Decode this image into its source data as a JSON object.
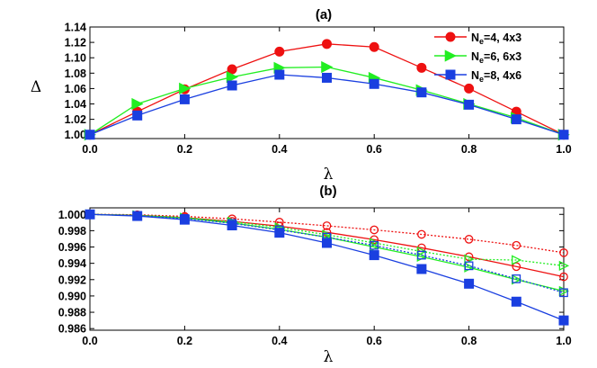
{
  "chart_data": [
    {
      "type": "line",
      "title": "(a)",
      "xlabel": "λ",
      "ylabel": "Δ",
      "xlim": [
        0.0,
        1.0
      ],
      "ylim": [
        0.995,
        1.14
      ],
      "xticks": [
        "0.0",
        "0.2",
        "0.4",
        "0.6",
        "0.8",
        "1.0"
      ],
      "yticks": [
        "1.00",
        "1.02",
        "1.04",
        "1.06",
        "1.08",
        "1.10",
        "1.12",
        "1.14"
      ],
      "x": [
        0.0,
        0.1,
        0.2,
        0.3,
        0.4,
        0.5,
        0.6,
        0.7,
        0.8,
        0.9,
        1.0
      ],
      "legend_position": "top-right",
      "series": [
        {
          "name": "N_e=4, 4x3",
          "name_main": "N",
          "name_sub": "e",
          "name_rest": "=4, 4x3",
          "color": "#ee1111",
          "marker": "circle",
          "values": [
            1.0,
            1.03,
            1.059,
            1.085,
            1.108,
            1.118,
            1.114,
            1.087,
            1.06,
            1.03,
            1.0
          ]
        },
        {
          "name": "N_e=6, 6x3",
          "name_main": "N",
          "name_sub": "e",
          "name_rest": "=6, 6x3",
          "color": "#22ee22",
          "marker": "triangle-right",
          "values": [
            1.0,
            1.04,
            1.06,
            1.075,
            1.087,
            1.088,
            1.074,
            1.058,
            1.04,
            1.022,
            1.0
          ]
        },
        {
          "name": "N_e=8, 4x6",
          "name_main": "N",
          "name_sub": "e",
          "name_rest": "=8, 4x6",
          "color": "#1a3fe0",
          "marker": "square",
          "values": [
            1.0,
            1.025,
            1.046,
            1.064,
            1.078,
            1.074,
            1.066,
            1.055,
            1.039,
            1.02,
            1.0
          ]
        }
      ]
    },
    {
      "type": "line",
      "title": "(b)",
      "xlabel": "λ",
      "xlim": [
        0.0,
        1.0
      ],
      "ylim": [
        0.9858,
        1.0008
      ],
      "xticks": [
        "0.0",
        "0.2",
        "0.4",
        "0.6",
        "0.8",
        "1.0"
      ],
      "yticks": [
        "1.000",
        "0.998",
        "0.996",
        "0.994",
        "0.992",
        "0.990",
        "0.988",
        "0.986"
      ],
      "x": [
        0.0,
        0.1,
        0.2,
        0.3,
        0.4,
        0.5,
        0.6,
        0.7,
        0.8,
        0.9,
        1.0
      ],
      "series": [
        {
          "color": "#ee1111",
          "marker": "open-circle",
          "dash": true,
          "values": [
            1.0,
            0.99995,
            0.99975,
            0.99945,
            0.99905,
            0.9986,
            0.9981,
            0.99755,
            0.99695,
            0.9962,
            0.9953
          ]
        },
        {
          "color": "#ee1111",
          "marker": "open-circle",
          "dash": false,
          "values": [
            1.0,
            0.9999,
            0.9996,
            0.99915,
            0.99855,
            0.9978,
            0.9969,
            0.9959,
            0.9948,
            0.9936,
            0.99235
          ]
        },
        {
          "color": "#22ee22",
          "marker": "open-triangle-right",
          "dash": true,
          "values": [
            1.0,
            0.9999,
            0.9996,
            0.9991,
            0.9984,
            0.9975,
            0.9965,
            0.99545,
            0.9945,
            0.9944,
            0.9937
          ]
        },
        {
          "color": "#22ee22",
          "marker": "open-triangle-right",
          "dash": false,
          "values": [
            1.0,
            0.99985,
            0.99955,
            0.99895,
            0.99815,
            0.9972,
            0.996,
            0.9948,
            0.9935,
            0.992,
            0.9906
          ]
        },
        {
          "color": "#1a3fe0",
          "marker": "open-square",
          "dash": true,
          "values": [
            1.0,
            0.99985,
            0.9995,
            0.9989,
            0.9981,
            0.9972,
            0.9962,
            0.995,
            0.9937,
            0.9921,
            0.9904
          ]
        },
        {
          "color": "#1a3fe0",
          "marker": "filled-square",
          "dash": false,
          "values": [
            1.0,
            0.9998,
            0.99935,
            0.99865,
            0.99775,
            0.9965,
            0.995,
            0.9933,
            0.9915,
            0.9893,
            0.987
          ]
        }
      ]
    }
  ]
}
